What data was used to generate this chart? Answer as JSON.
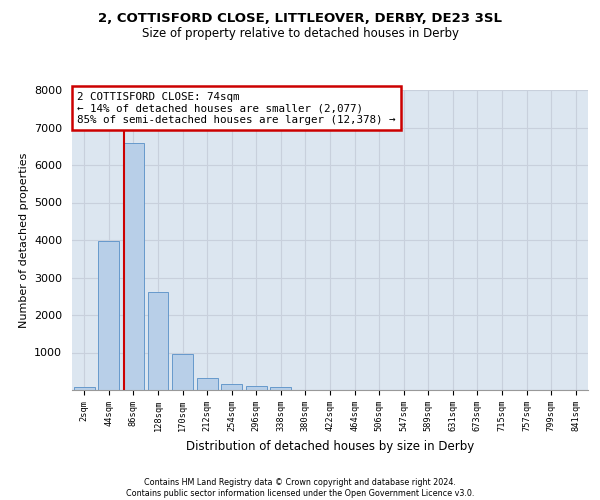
{
  "title_line1": "2, COTTISFORD CLOSE, LITTLEOVER, DERBY, DE23 3SL",
  "title_line2": "Size of property relative to detached houses in Derby",
  "xlabel": "Distribution of detached houses by size in Derby",
  "ylabel": "Number of detached properties",
  "bar_labels": [
    "2sqm",
    "44sqm",
    "86sqm",
    "128sqm",
    "170sqm",
    "212sqm",
    "254sqm",
    "296sqm",
    "338sqm",
    "380sqm",
    "422sqm",
    "464sqm",
    "506sqm",
    "547sqm",
    "589sqm",
    "631sqm",
    "673sqm",
    "715sqm",
    "757sqm",
    "799sqm",
    "841sqm"
  ],
  "bar_heights": [
    70,
    3980,
    6600,
    2620,
    960,
    315,
    155,
    110,
    85,
    0,
    0,
    0,
    0,
    0,
    0,
    0,
    0,
    0,
    0,
    0,
    0
  ],
  "bar_color": "#b8cfe8",
  "bar_edge_color": "#6699cc",
  "vline_x": 1.6,
  "vline_color": "#cc0000",
  "annotation_text": "2 COTTISFORD CLOSE: 74sqm\n← 14% of detached houses are smaller (2,077)\n85% of semi-detached houses are larger (12,378) →",
  "annotation_box_color": "white",
  "annotation_box_edge": "#cc0000",
  "ylim": [
    0,
    8000
  ],
  "yticks": [
    0,
    1000,
    2000,
    3000,
    4000,
    5000,
    6000,
    7000,
    8000
  ],
  "grid_color": "#c8d0dc",
  "bg_color": "#dce6f0",
  "footer_line1": "Contains HM Land Registry data © Crown copyright and database right 2024.",
  "footer_line2": "Contains public sector information licensed under the Open Government Licence v3.0."
}
